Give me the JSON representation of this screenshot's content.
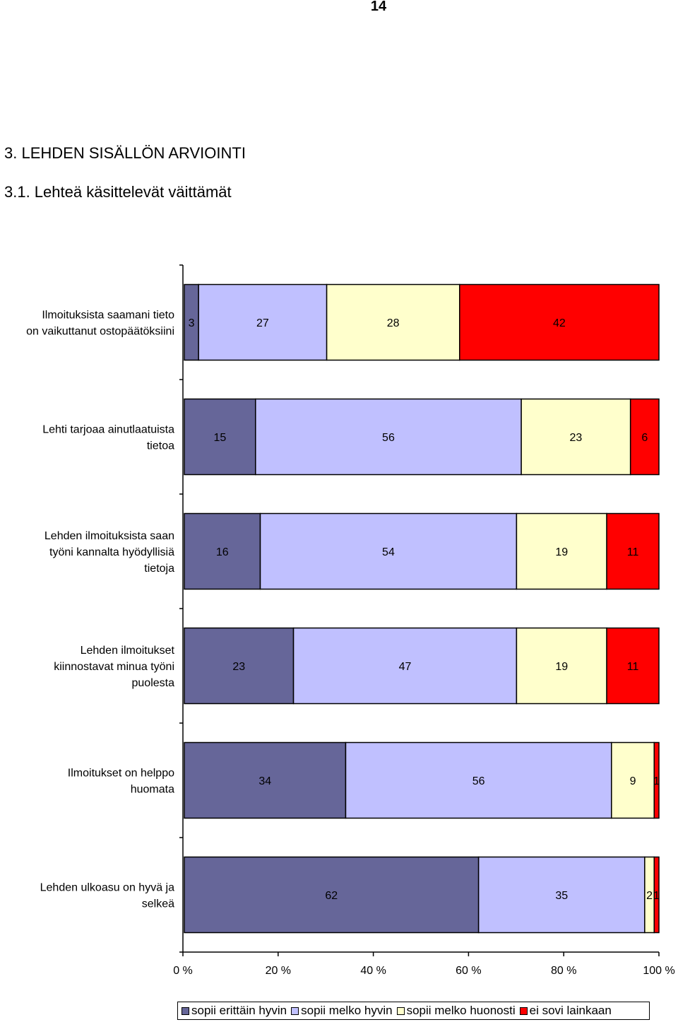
{
  "page": {
    "number": "14",
    "section_title": "3. LEHDEN SISÄLLÖN ARVIOINTI",
    "subsection_title": "3.1. Lehteä käsittelevät väittämät"
  },
  "chart_data": {
    "type": "bar",
    "orientation": "horizontal",
    "stacked": "100%",
    "categories": [
      [
        "Ilmoituksista saamani tieto",
        "on vaikuttanut ostopäätöksiini"
      ],
      [
        "Lehti tarjoaa ainutlaatuista",
        "tietoa"
      ],
      [
        "Lehden ilmoituksista saan",
        "työni kannalta hyödyllisiä",
        "tietoja"
      ],
      [
        "Lehden ilmoitukset",
        "kiinnostavat minua työni",
        "puolesta"
      ],
      [
        "Ilmoitukset on helppo",
        "huomata"
      ],
      [
        "Lehden ulkoasu on hyvä ja",
        "selkeä"
      ]
    ],
    "series": [
      {
        "name": "sopii erittäin hyvin",
        "color": "#666699",
        "values": [
          3,
          15,
          16,
          23,
          34,
          62
        ]
      },
      {
        "name": "sopii melko hyvin",
        "color": "#c0c0ff",
        "values": [
          27,
          56,
          54,
          47,
          56,
          35
        ]
      },
      {
        "name": "sopii melko huonosti",
        "color": "#ffffcc",
        "values": [
          28,
          23,
          19,
          19,
          9,
          2
        ]
      },
      {
        "name": "ei sovi lainkaan",
        "color": "#ff0000",
        "values": [
          42,
          6,
          11,
          11,
          1,
          1
        ]
      }
    ],
    "xlim": [
      0,
      100
    ],
    "xticks": [
      "0 %",
      "20 %",
      "40 %",
      "60 %",
      "80 %",
      "100 %"
    ],
    "legend_position": "bottom",
    "grid": false
  }
}
